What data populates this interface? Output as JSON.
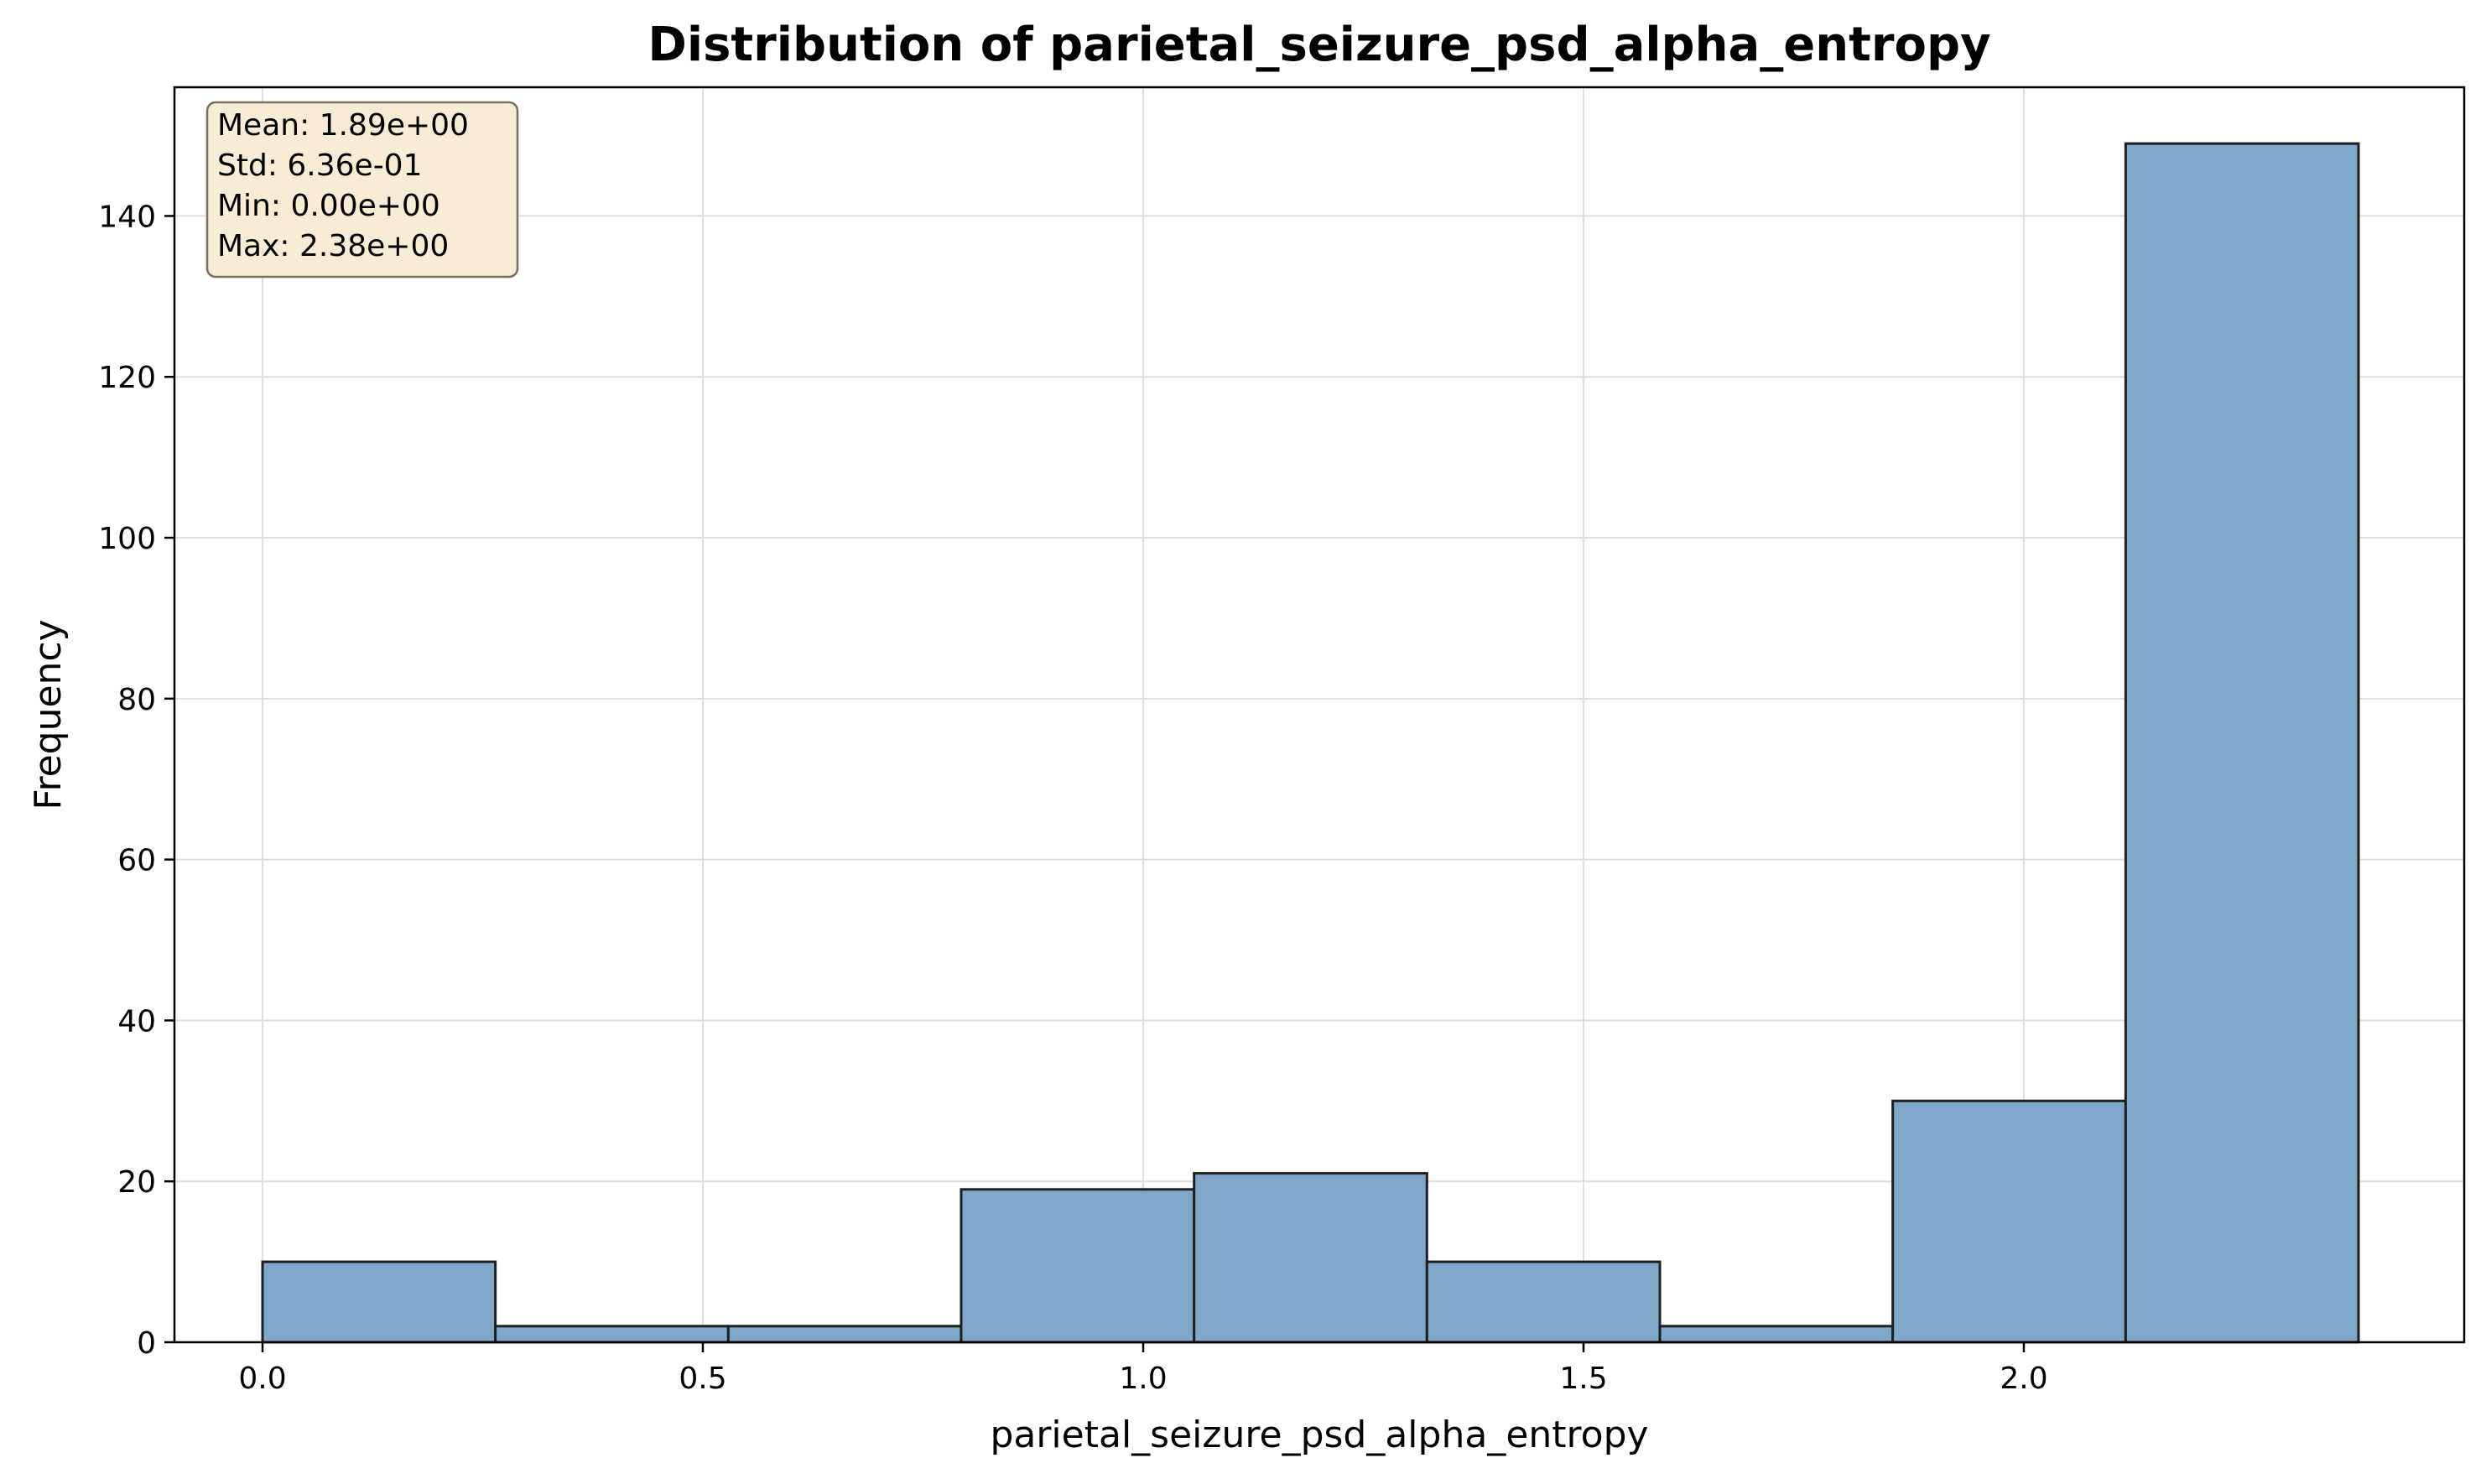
{
  "chart_data": {
    "type": "bar",
    "title": "Distribution of parietal_seizure_psd_alpha_entropy",
    "xlabel": "parietal_seizure_psd_alpha_entropy",
    "ylabel": "Frequency",
    "bin_edges": [
      0.0,
      0.2644,
      0.5289,
      0.7933,
      1.0578,
      1.3222,
      1.5867,
      1.8511,
      2.1156,
      2.38
    ],
    "values": [
      10,
      2,
      2,
      19,
      21,
      10,
      2,
      30,
      149
    ],
    "xlim": [
      -0.1,
      2.5
    ],
    "ylim": [
      0,
      156
    ],
    "xticks": [
      0.0,
      0.5,
      1.0,
      1.5,
      2.0
    ],
    "xtick_labels": [
      "0.0",
      "0.5",
      "1.0",
      "1.5",
      "2.0"
    ],
    "yticks": [
      0,
      20,
      40,
      60,
      80,
      100,
      120,
      140
    ],
    "ytick_labels": [
      "0",
      "20",
      "40",
      "60",
      "80",
      "100",
      "120",
      "140"
    ],
    "grid": true,
    "stats_box": {
      "position": "top-left",
      "lines": [
        "Mean: 1.89e+00",
        "Std: 6.36e-01",
        "Min: 0.00e+00",
        "Max: 2.38e+00"
      ]
    },
    "colors": {
      "bar_fill": "#7ea7ca",
      "bar_edge": "#1f1f1f",
      "stats_box_fill": "#f8ecd5",
      "stats_box_edge": "#7a7060",
      "grid": "#dddddd"
    }
  }
}
